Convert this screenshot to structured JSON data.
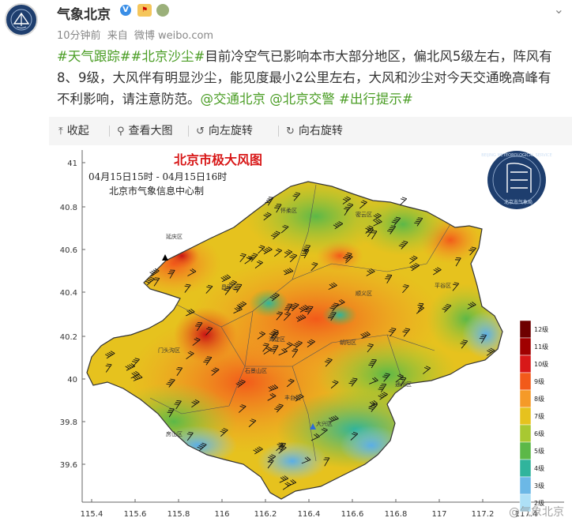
{
  "header": {
    "account_name": "气象北京",
    "verified_badge": "V",
    "meta_time": "10分钟前",
    "meta_from": "来自",
    "meta_source": "微博 weibo.com",
    "more_icon": "chevron-down-icon"
  },
  "post": {
    "segments": [
      {
        "type": "tag",
        "text": "#天气跟踪#"
      },
      {
        "type": "tag",
        "text": "#北京沙尘#"
      },
      {
        "type": "text",
        "text": "目前冷空气已影响本市大部分地区，偏北风5级左右，阵风有8、9级，大风伴有明显沙尘，能见度最小2公里左右，大风和沙尘对今天交通晚高峰有不利影响，请注意防范。"
      },
      {
        "type": "tag",
        "text": "@交通北京"
      },
      {
        "type": "text",
        "text": " "
      },
      {
        "type": "tag",
        "text": "@北京交警"
      },
      {
        "type": "text",
        "text": " "
      },
      {
        "type": "tag",
        "text": "#出行提示#"
      }
    ]
  },
  "toolbar": {
    "collapse": "收起",
    "view_large": "查看大图",
    "rotate_left": "向左旋转",
    "rotate_right": "向右旋转"
  },
  "map": {
    "title": "北京市极大风图",
    "time_range": "04月15日15时 - 04月15日16时",
    "producer": "北京市气象信息中心制",
    "lat_ticks": [
      "41",
      "40.8",
      "40.6",
      "40.4",
      "40.2",
      "40",
      "39.8",
      "39.6"
    ],
    "lon_ticks": [
      "115.4",
      "115.6",
      "115.8",
      "116",
      "116.2",
      "116.4",
      "116.6",
      "116.8",
      "117",
      "117.2",
      "117.4"
    ],
    "legend_levels": [
      "12级",
      "11级",
      "10级",
      "9级",
      "8级",
      "7级",
      "6级",
      "5级",
      "4级",
      "3级",
      "2级"
    ],
    "legend_colors": [
      "#6e0000",
      "#a00000",
      "#d81818",
      "#f25a1a",
      "#f59a28",
      "#e6c21e",
      "#a8c832",
      "#5cb848",
      "#30b49c",
      "#6cb8e6",
      "#aee0f6"
    ],
    "district_labels": [
      "延庆区",
      "怀柔区",
      "密云区",
      "昌平区",
      "顺义区",
      "平谷区",
      "门头沟区",
      "海淀区",
      "朝阳区",
      "通州区",
      "房山区",
      "丰台区",
      "大兴区",
      "石景山区"
    ],
    "logo_ring_text": "BEIJING METEOROLOGICAL SERVICE",
    "logo_cn_text": "北京市气象局"
  },
  "watermark": "@气象北京"
}
